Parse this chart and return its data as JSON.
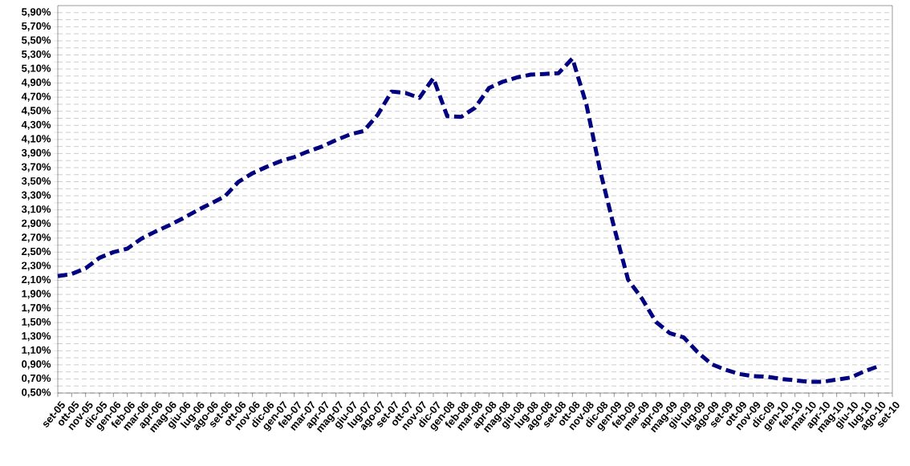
{
  "chart_data": {
    "type": "line",
    "categories": [
      "set-05",
      "ott-05",
      "nov-05",
      "dic-05",
      "gen-06",
      "feb-06",
      "mar-06",
      "apr-06",
      "mag-06",
      "giu-06",
      "lug-06",
      "ago-06",
      "set-06",
      "ott-06",
      "nov-06",
      "dic-06",
      "gen-07",
      "feb-07",
      "mar-07",
      "apr-07",
      "mag-07",
      "giu-07",
      "lug-07",
      "ago-07",
      "set-07",
      "ott-07",
      "nov-07",
      "dic-07",
      "gen-08",
      "feb-08",
      "mar-08",
      "apr-08",
      "mag-08",
      "giu-08",
      "lug-08",
      "ago-08",
      "set-08",
      "ott-08",
      "nov-08",
      "dic-08",
      "gen-09",
      "feb-09",
      "mar-09",
      "apr-09",
      "mag-09",
      "giu-09",
      "lug-09",
      "ago-09",
      "set-09",
      "ott-09",
      "nov-09",
      "dic-09",
      "gen-10",
      "feb-10",
      "mar-10",
      "apr-10",
      "mag-10",
      "giu-10",
      "lug-10",
      "ago-10",
      "set-10"
    ],
    "series": [
      {
        "color": "#000080",
        "line_style": "dashed",
        "values": [
          2.16,
          2.19,
          2.27,
          2.42,
          2.5,
          2.55,
          2.69,
          2.79,
          2.88,
          2.98,
          3.09,
          3.19,
          3.29,
          3.5,
          3.62,
          3.71,
          3.79,
          3.85,
          3.93,
          4.0,
          4.09,
          4.17,
          4.22,
          4.45,
          4.78,
          4.76,
          4.69,
          4.97,
          4.43,
          4.42,
          4.55,
          4.83,
          4.92,
          4.98,
          5.02,
          5.03,
          5.04,
          5.25,
          4.6,
          3.65,
          2.85,
          2.11,
          1.84,
          1.51,
          1.35,
          1.29,
          1.08,
          0.91,
          0.83,
          0.77,
          0.74,
          0.73,
          0.7,
          0.68,
          0.66,
          0.66,
          0.69,
          0.72,
          0.81,
          0.88,
          null
        ]
      }
    ],
    "ylim": [
      0.5,
      6.0
    ],
    "yticks": [
      {
        "value": 0.5,
        "label": "0,50%"
      },
      {
        "value": 0.6,
        "label": null
      },
      {
        "value": 0.7,
        "label": "0,70%"
      },
      {
        "value": 0.8,
        "label": null
      },
      {
        "value": 0.9,
        "label": "0,90%"
      },
      {
        "value": 1.0,
        "label": null
      },
      {
        "value": 1.1,
        "label": "1,10%"
      },
      {
        "value": 1.2,
        "label": null
      },
      {
        "value": 1.3,
        "label": "1,30%"
      },
      {
        "value": 1.4,
        "label": null
      },
      {
        "value": 1.5,
        "label": "1,50%"
      },
      {
        "value": 1.6,
        "label": null
      },
      {
        "value": 1.7,
        "label": "1,70%"
      },
      {
        "value": 1.8,
        "label": null
      },
      {
        "value": 1.9,
        "label": "1,90%"
      },
      {
        "value": 2.0,
        "label": null
      },
      {
        "value": 2.1,
        "label": "2,10%"
      },
      {
        "value": 2.2,
        "label": null
      },
      {
        "value": 2.3,
        "label": "2,30%"
      },
      {
        "value": 2.4,
        "label": null
      },
      {
        "value": 2.5,
        "label": "2,50%"
      },
      {
        "value": 2.6,
        "label": null
      },
      {
        "value": 2.7,
        "label": "2,70%"
      },
      {
        "value": 2.8,
        "label": null
      },
      {
        "value": 2.9,
        "label": "2,90%"
      },
      {
        "value": 3.0,
        "label": null
      },
      {
        "value": 3.1,
        "label": "3,10%"
      },
      {
        "value": 3.2,
        "label": null
      },
      {
        "value": 3.3,
        "label": "3,30%"
      },
      {
        "value": 3.4,
        "label": null
      },
      {
        "value": 3.5,
        "label": "3,50%"
      },
      {
        "value": 3.6,
        "label": null
      },
      {
        "value": 3.7,
        "label": "3,70%"
      },
      {
        "value": 3.8,
        "label": null
      },
      {
        "value": 3.9,
        "label": "3,90%"
      },
      {
        "value": 4.0,
        "label": null
      },
      {
        "value": 4.1,
        "label": "4,10%"
      },
      {
        "value": 4.2,
        "label": null
      },
      {
        "value": 4.3,
        "label": "4,30%"
      },
      {
        "value": 4.4,
        "label": null
      },
      {
        "value": 4.5,
        "label": "4,50%"
      },
      {
        "value": 4.6,
        "label": null
      },
      {
        "value": 4.7,
        "label": "4,70%"
      },
      {
        "value": 4.8,
        "label": null
      },
      {
        "value": 4.9,
        "label": "4,90%"
      },
      {
        "value": 5.0,
        "label": null
      },
      {
        "value": 5.1,
        "label": "5,10%"
      },
      {
        "value": 5.2,
        "label": null
      },
      {
        "value": 5.3,
        "label": "5,30%"
      },
      {
        "value": 5.4,
        "label": null
      },
      {
        "value": 5.5,
        "label": "5,50%"
      },
      {
        "value": 5.6,
        "label": null
      },
      {
        "value": 5.7,
        "label": "5,70%"
      },
      {
        "value": 5.8,
        "label": null
      },
      {
        "value": 5.9,
        "label": "5,90%"
      }
    ],
    "grid": "y"
  }
}
